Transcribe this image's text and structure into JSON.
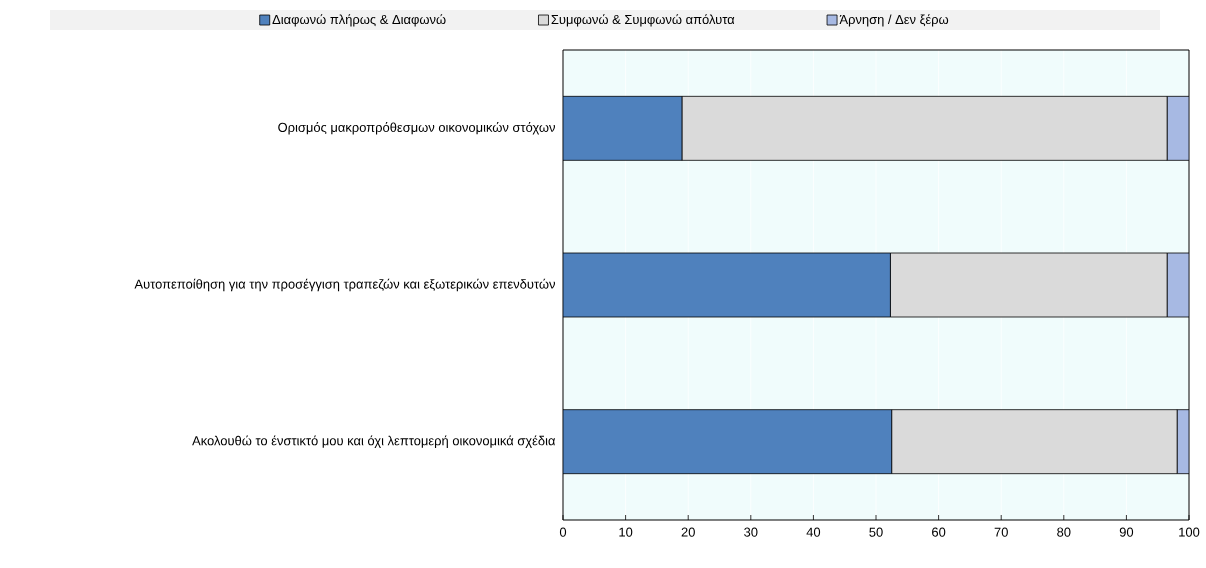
{
  "chart_data": {
    "type": "bar",
    "orientation": "horizontal",
    "stacked": true,
    "categories": [
      "Ορισμός μακροπρόθεσμων οικονομικών στόχων",
      "Αυτοπεποίθηση για την προσέγγιση τραπεζών και εξωτερικών επενδυτών",
      "Ακολουθώ το ένστικτό μου και όχι λεπτομερή οικονομικά σχέδια"
    ],
    "series": [
      {
        "name": "Διαφωνώ πλήρως & Διαφωνώ",
        "color": "#4f81bd",
        "values": [
          19,
          52.3,
          52.5
        ]
      },
      {
        "name": "Συμφωνώ & Συμφωνώ απόλυτα",
        "color": "#dadada",
        "values": [
          77.5,
          44.2,
          45.6
        ]
      },
      {
        "name": "Άρνηση / Δεν ξέρω",
        "color": "#a7b9e3",
        "values": [
          3.5,
          3.5,
          1.9
        ]
      }
    ],
    "xlim": [
      0,
      100
    ],
    "xticks": [
      0,
      10,
      20,
      30,
      40,
      50,
      60,
      70,
      80,
      90,
      100
    ],
    "grid": "x",
    "legend": "top"
  }
}
